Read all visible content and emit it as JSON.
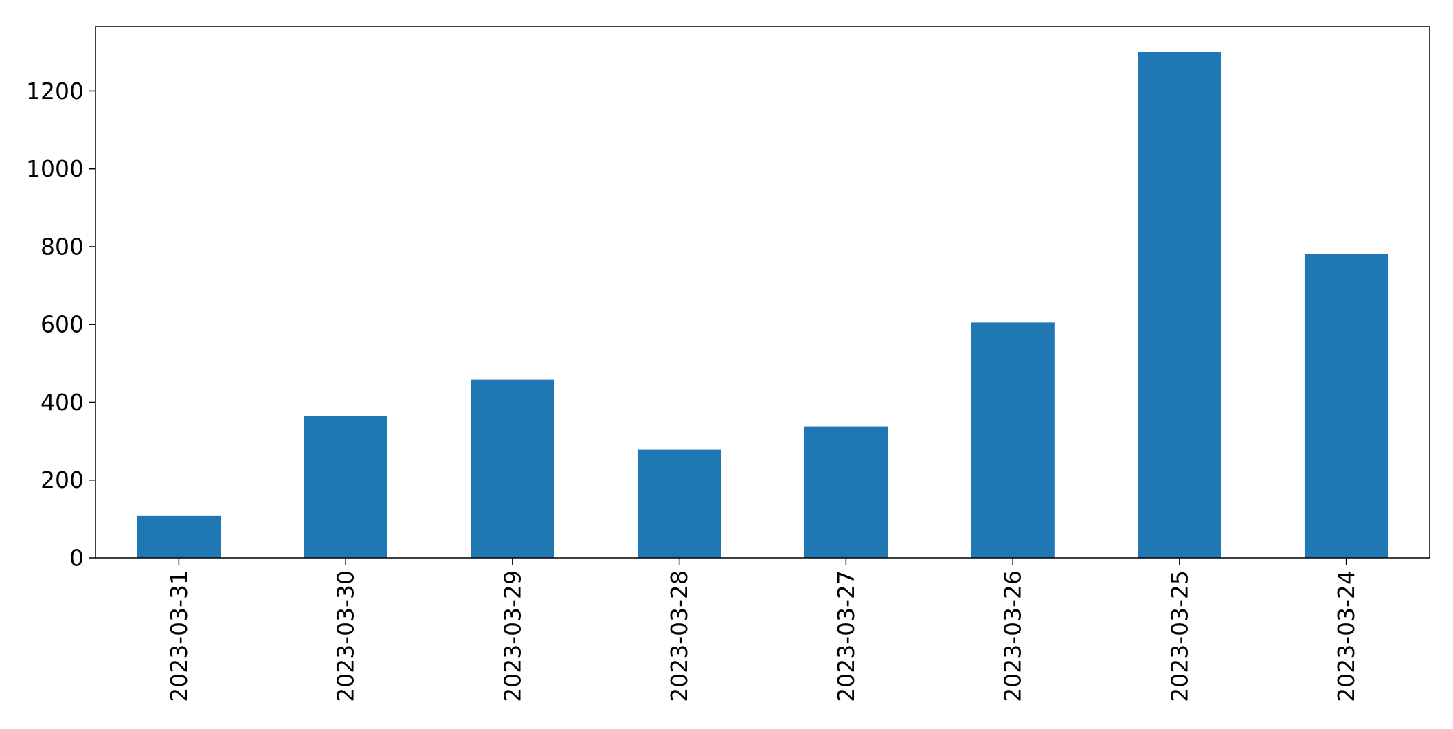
{
  "colors": {
    "bar": "#1f77b4",
    "axis": "#000000",
    "background": "#ffffff"
  },
  "chart_data": {
    "type": "bar",
    "categories": [
      "2023-03-31",
      "2023-03-30",
      "2023-03-29",
      "2023-03-28",
      "2023-03-27",
      "2023-03-26",
      "2023-03-25",
      "2023-03-24"
    ],
    "values": [
      108,
      364,
      458,
      278,
      338,
      605,
      1300,
      782
    ],
    "title": "",
    "xlabel": "",
    "ylabel": "",
    "ylim": [
      0,
      1365
    ],
    "yticks": [
      0,
      200,
      400,
      600,
      800,
      1000,
      1200
    ],
    "grid": false,
    "legend": "none"
  }
}
